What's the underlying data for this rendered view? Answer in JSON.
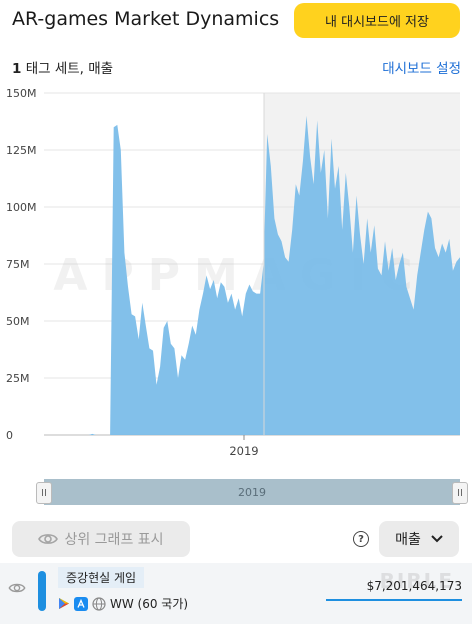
{
  "header": {
    "title": "AR-games Market Dynamics",
    "save_button": "내 대시보드에 저장"
  },
  "subheader": {
    "count": "1",
    "label": "태그 세트, 매출",
    "dashboard_link": "대시보드 설정"
  },
  "chart_data": {
    "type": "area",
    "y_tick_labels": [
      "150M",
      "125M",
      "100M",
      "75M",
      "50M",
      "25M",
      "0"
    ],
    "ylim": [
      0,
      150000000
    ],
    "x_tick_labels": [
      "2019"
    ],
    "watermark": "APPMAGIC",
    "grid": true,
    "series": [
      {
        "color": "#7bbde9",
        "values": [
          0,
          0,
          0,
          0,
          500000,
          0,
          0,
          0,
          0,
          0,
          135000000,
          136000000,
          125000000,
          80000000,
          65000000,
          53000000,
          52000000,
          42000000,
          58000000,
          48000000,
          38000000,
          37000000,
          22000000,
          30000000,
          47000000,
          50000000,
          40000000,
          38000000,
          25000000,
          35000000,
          33000000,
          40000000,
          48000000,
          44000000,
          55000000,
          62000000,
          70000000,
          64000000,
          68000000,
          60000000,
          67000000,
          65000000,
          58000000,
          62000000,
          55000000,
          60000000,
          52000000,
          62000000,
          66000000,
          63000000,
          62000000,
          62000000,
          75000000,
          132000000,
          118000000,
          95000000,
          88000000,
          85000000,
          78000000,
          76000000,
          90000000,
          110000000,
          105000000,
          120000000,
          140000000,
          122000000,
          110000000,
          138000000,
          115000000,
          125000000,
          95000000,
          130000000,
          108000000,
          118000000,
          90000000,
          115000000,
          100000000,
          80000000,
          105000000,
          88000000,
          75000000,
          95000000,
          80000000,
          92000000,
          73000000,
          70000000,
          85000000,
          72000000,
          82000000,
          68000000,
          75000000,
          80000000,
          65000000,
          60000000,
          55000000,
          70000000,
          80000000,
          90000000,
          98000000,
          95000000,
          82000000,
          78000000,
          84000000,
          80000000,
          86000000,
          72000000,
          76000000,
          78000000
        ]
      }
    ]
  },
  "scrollbar": {
    "label": "2019",
    "handle_left": "II",
    "handle_right": "II"
  },
  "controls": {
    "top_graph_label": "상위 그래프 표시",
    "help": "?",
    "metric": "매출"
  },
  "legend_row": {
    "name": "증강현실 게임",
    "region": "WW (60 국가)",
    "value": "$7,201,464,173",
    "color": "#1e8fe0",
    "watermark": "BIBLE"
  }
}
